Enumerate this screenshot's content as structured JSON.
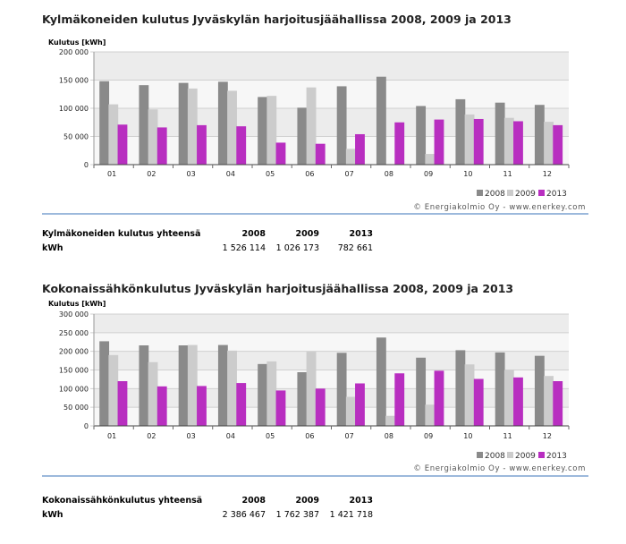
{
  "colors": {
    "y2008": "#8a8a8a",
    "y2009": "#cccccc",
    "y2013": "#b82ec0",
    "separator": "#3a73b8"
  },
  "charts": [
    {
      "title": "Kylmäkoneiden kulutus Jyväskylän harjoitusjäähallissa 2008, 2009 ja 2013",
      "totals_label": "Kylmäkoneiden kulutus yhteensä",
      "unit_label": "kWh",
      "years": [
        "2008",
        "2009",
        "2013"
      ],
      "totals": [
        "1 526 114",
        "1 026 173",
        "782 661"
      ],
      "legend": [
        "2008",
        "2009",
        "2013"
      ],
      "credit": "© Energiakolmio Oy - www.enerkey.com"
    },
    {
      "title": "Kokonaissähkönkulutus Jyväskylän harjoitusjäähallissa  2008, 2009 ja 2013",
      "totals_label": "Kokonaissähkönkulutus yhteensä",
      "unit_label": "kWh",
      "years": [
        "2008",
        "2009",
        "2013"
      ],
      "totals": [
        "2 386 467",
        "1 762 387",
        "1 421 718"
      ],
      "legend": [
        "2008",
        "2009",
        "2013"
      ],
      "credit": "© Energiakolmio Oy - www.enerkey.com"
    }
  ],
  "chart_data": [
    {
      "type": "bar",
      "title": "Kylmäkoneiden kulutus Jyväskylän harjoitusjäähallissa 2008, 2009 ja 2013",
      "ylabel": "Kulutus [kWh]",
      "ylim": [
        0,
        200000
      ],
      "yticks": [
        "0",
        "50 000",
        "100 000",
        "150 000",
        "200 000"
      ],
      "categories": [
        "01",
        "02",
        "03",
        "04",
        "05",
        "06",
        "07",
        "08",
        "09",
        "10",
        "11",
        "12"
      ],
      "series": [
        {
          "name": "2008",
          "values": [
            148000,
            141000,
            145000,
            147000,
            120000,
            101000,
            139000,
            156000,
            104000,
            116000,
            110000,
            106000
          ]
        },
        {
          "name": "2009",
          "values": [
            107000,
            98000,
            135000,
            131000,
            122000,
            137000,
            28000,
            0,
            19000,
            89000,
            83000,
            76000
          ]
        },
        {
          "name": "2013",
          "values": [
            71000,
            66000,
            70000,
            68000,
            39000,
            37000,
            54000,
            75000,
            80000,
            81000,
            77000,
            70000
          ]
        }
      ],
      "grid": true,
      "legend_position": "bottom-right"
    },
    {
      "type": "bar",
      "title": "Kokonaissähkönkulutus Jyväskylän harjoitusjäähallissa  2008, 2009 ja 2013",
      "ylabel": "Kulutus [kWh]",
      "ylim": [
        0,
        300000
      ],
      "yticks": [
        "0",
        "50 000",
        "100 000",
        "150 000",
        "200 000",
        "250 000",
        "300 000"
      ],
      "categories": [
        "01",
        "02",
        "03",
        "04",
        "05",
        "06",
        "07",
        "08",
        "09",
        "10",
        "11",
        "12"
      ],
      "series": [
        {
          "name": "2008",
          "values": [
            227000,
            216000,
            216000,
            217000,
            166000,
            144000,
            196000,
            237000,
            183000,
            203000,
            197000,
            188000
          ]
        },
        {
          "name": "2009",
          "values": [
            190000,
            171000,
            217000,
            202000,
            173000,
            199000,
            78000,
            27000,
            57000,
            165000,
            150000,
            134000
          ]
        },
        {
          "name": "2013",
          "values": [
            120000,
            106000,
            107000,
            115000,
            95000,
            100000,
            114000,
            141000,
            148000,
            126000,
            130000,
            120000
          ]
        }
      ],
      "grid": true,
      "legend_position": "bottom-right"
    }
  ]
}
